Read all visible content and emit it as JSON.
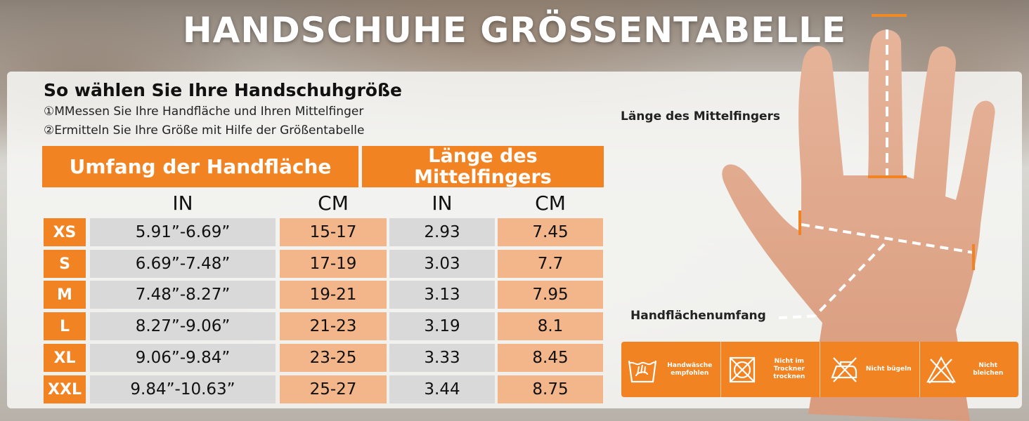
{
  "title": "HANDSCHUHE GRÖSSENTABELLE",
  "guide": {
    "heading": "So wählen Sie Ihre Handschuhgröße",
    "step1": "①MMessen Sie Ihre Handfläche und Ihren Mittelfinger",
    "step2": "②Ermitteln Sie Ihre Größe mit Hilfe der Größentabelle"
  },
  "table": {
    "header_palm": "Umfang der Handfläche",
    "header_finger": "Länge des Mittelfingers",
    "units": [
      "IN",
      "CM",
      "IN",
      "CM"
    ],
    "rows": [
      {
        "size": "XS",
        "palm_in": "5.91”-6.69”",
        "palm_cm": "15-17",
        "finger_in": "2.93",
        "finger_cm": "7.45"
      },
      {
        "size": "S",
        "palm_in": "6.69”-7.48”",
        "palm_cm": "17-19",
        "finger_in": "3.03",
        "finger_cm": "7.7"
      },
      {
        "size": "M",
        "palm_in": "7.48”-8.27”",
        "palm_cm": "19-21",
        "finger_in": "3.13",
        "finger_cm": "7.95"
      },
      {
        "size": "L",
        "palm_in": "8.27”-9.06”",
        "palm_cm": "21-23",
        "finger_in": "3.19",
        "finger_cm": "8.1"
      },
      {
        "size": "XL",
        "palm_in": "9.06”-9.84”",
        "palm_cm": "23-25",
        "finger_in": "3.33",
        "finger_cm": "8.45"
      },
      {
        "size": "XXL",
        "palm_in": "9.84”-10.63”",
        "palm_cm": "25-27",
        "finger_in": "3.44",
        "finger_cm": "8.75"
      }
    ]
  },
  "hand": {
    "label_finger": "Länge des Mittelfingers",
    "label_palm": "Handflächenumfang"
  },
  "care": [
    {
      "icon": "hand-wash-icon",
      "label": "Handwäsche empfohlen"
    },
    {
      "icon": "no-tumble-dry-icon",
      "label": "Nicht im Trockner trocknen"
    },
    {
      "icon": "no-iron-icon",
      "label": "Nicht bügeln"
    },
    {
      "icon": "no-bleach-icon",
      "label": "Nicht bleichen"
    }
  ],
  "colors": {
    "accent": "#f28322",
    "gray_cell": "#d9d9d9",
    "peach_cell": "#f3b58a"
  }
}
